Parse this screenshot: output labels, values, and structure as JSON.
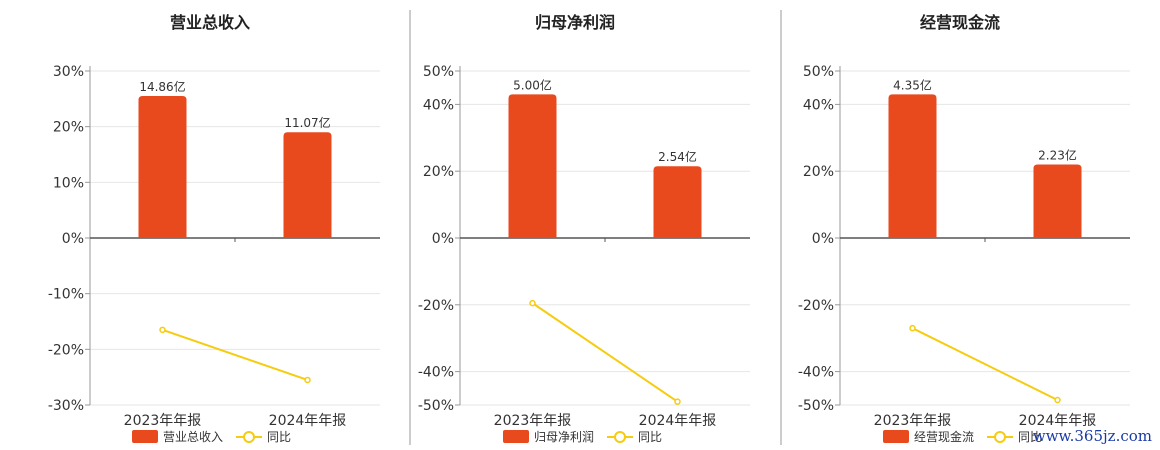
{
  "chart_data": [
    {
      "type": "bar",
      "title": "营业总收入",
      "categories": [
        "2023年年报",
        "2024年年报"
      ],
      "series": [
        {
          "name": "营业总收入",
          "type": "bar",
          "values": [
            25.5,
            19.0
          ],
          "labels": [
            "14.86亿",
            "11.07亿"
          ]
        },
        {
          "name": "同比",
          "type": "line",
          "values": [
            -16.5,
            -25.5
          ]
        }
      ],
      "y_ticks": [
        "30%",
        "20%",
        "10%",
        "0%",
        "-10%",
        "-20%",
        "-30%"
      ],
      "ylim": [
        -30,
        30
      ],
      "colors": {
        "bar": "#e84a1e",
        "line": "#f5cc10"
      }
    },
    {
      "type": "bar",
      "title": "归母净利润",
      "categories": [
        "2023年年报",
        "2024年年报"
      ],
      "series": [
        {
          "name": "归母净利润",
          "type": "bar",
          "values": [
            43,
            21.5
          ],
          "labels": [
            "5.00亿",
            "2.54亿"
          ]
        },
        {
          "name": "同比",
          "type": "line",
          "values": [
            -19.5,
            -49
          ]
        }
      ],
      "y_ticks": [
        "50%",
        "40%",
        "20%",
        "0%",
        "-20%",
        "-40%",
        "-50%"
      ],
      "ylim": [
        -50,
        50
      ],
      "colors": {
        "bar": "#e84a1e",
        "line": "#f5cc10"
      }
    },
    {
      "type": "bar",
      "title": "经营现金流",
      "categories": [
        "2023年年报",
        "2024年年报"
      ],
      "series": [
        {
          "name": "经营现金流",
          "type": "bar",
          "values": [
            43,
            22
          ],
          "labels": [
            "4.35亿",
            "2.23亿"
          ]
        },
        {
          "name": "同比",
          "type": "line",
          "values": [
            -27,
            -48.5
          ]
        }
      ],
      "y_ticks": [
        "50%",
        "40%",
        "20%",
        "0%",
        "-20%",
        "-40%",
        "-50%"
      ],
      "ylim": [
        -50,
        50
      ],
      "colors": {
        "bar": "#e84a1e",
        "line": "#f5cc10"
      }
    }
  ],
  "watermark": "www.365jz.com"
}
